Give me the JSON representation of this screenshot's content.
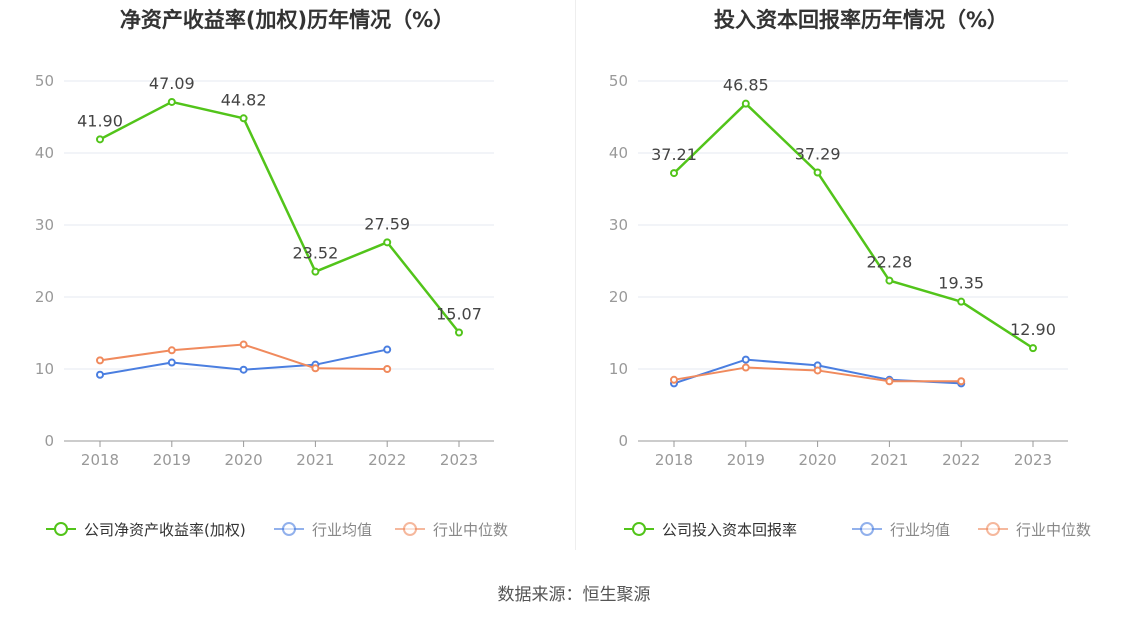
{
  "source_text": "数据来源：恒生聚源",
  "chart_data": [
    {
      "type": "line",
      "title": "净资产收益率(加权)历年情况（%）",
      "x": [
        "2018",
        "2019",
        "2020",
        "2021",
        "2022",
        "2023"
      ],
      "ylim": [
        0,
        50
      ],
      "yticks": [
        0,
        10,
        20,
        30,
        40,
        50
      ],
      "grid": true,
      "legend_position": "bottom",
      "series": [
        {
          "name": "公司净资产收益率(加权)",
          "color": "#52c41a",
          "values": [
            41.9,
            47.09,
            44.82,
            23.52,
            27.59,
            15.07
          ],
          "labels": [
            "41.90",
            "47.09",
            "44.82",
            "23.52",
            "27.59",
            "15.07"
          ]
        },
        {
          "name": "行业均值",
          "color": "#4a7ee0",
          "values": [
            9.2,
            10.9,
            9.9,
            10.6,
            12.7,
            null
          ]
        },
        {
          "name": "行业中位数",
          "color": "#f08a5d",
          "values": [
            11.2,
            12.6,
            13.4,
            10.1,
            10.0,
            null
          ]
        }
      ]
    },
    {
      "type": "line",
      "title": "投入资本回报率历年情况（%）",
      "x": [
        "2018",
        "2019",
        "2020",
        "2021",
        "2022",
        "2023"
      ],
      "ylim": [
        0,
        50
      ],
      "yticks": [
        0,
        10,
        20,
        30,
        40,
        50
      ],
      "grid": true,
      "legend_position": "bottom",
      "series": [
        {
          "name": "公司投入资本回报率",
          "color": "#52c41a",
          "values": [
            37.21,
            46.85,
            37.29,
            22.28,
            19.35,
            12.9
          ],
          "labels": [
            "37.21",
            "46.85",
            "37.29",
            "22.28",
            "19.35",
            "12.90"
          ]
        },
        {
          "name": "行业均值",
          "color": "#4a7ee0",
          "values": [
            8.0,
            11.3,
            10.5,
            8.5,
            8.0,
            null
          ]
        },
        {
          "name": "行业中位数",
          "color": "#f08a5d",
          "values": [
            8.5,
            10.2,
            9.8,
            8.3,
            8.3,
            null
          ]
        }
      ]
    }
  ]
}
